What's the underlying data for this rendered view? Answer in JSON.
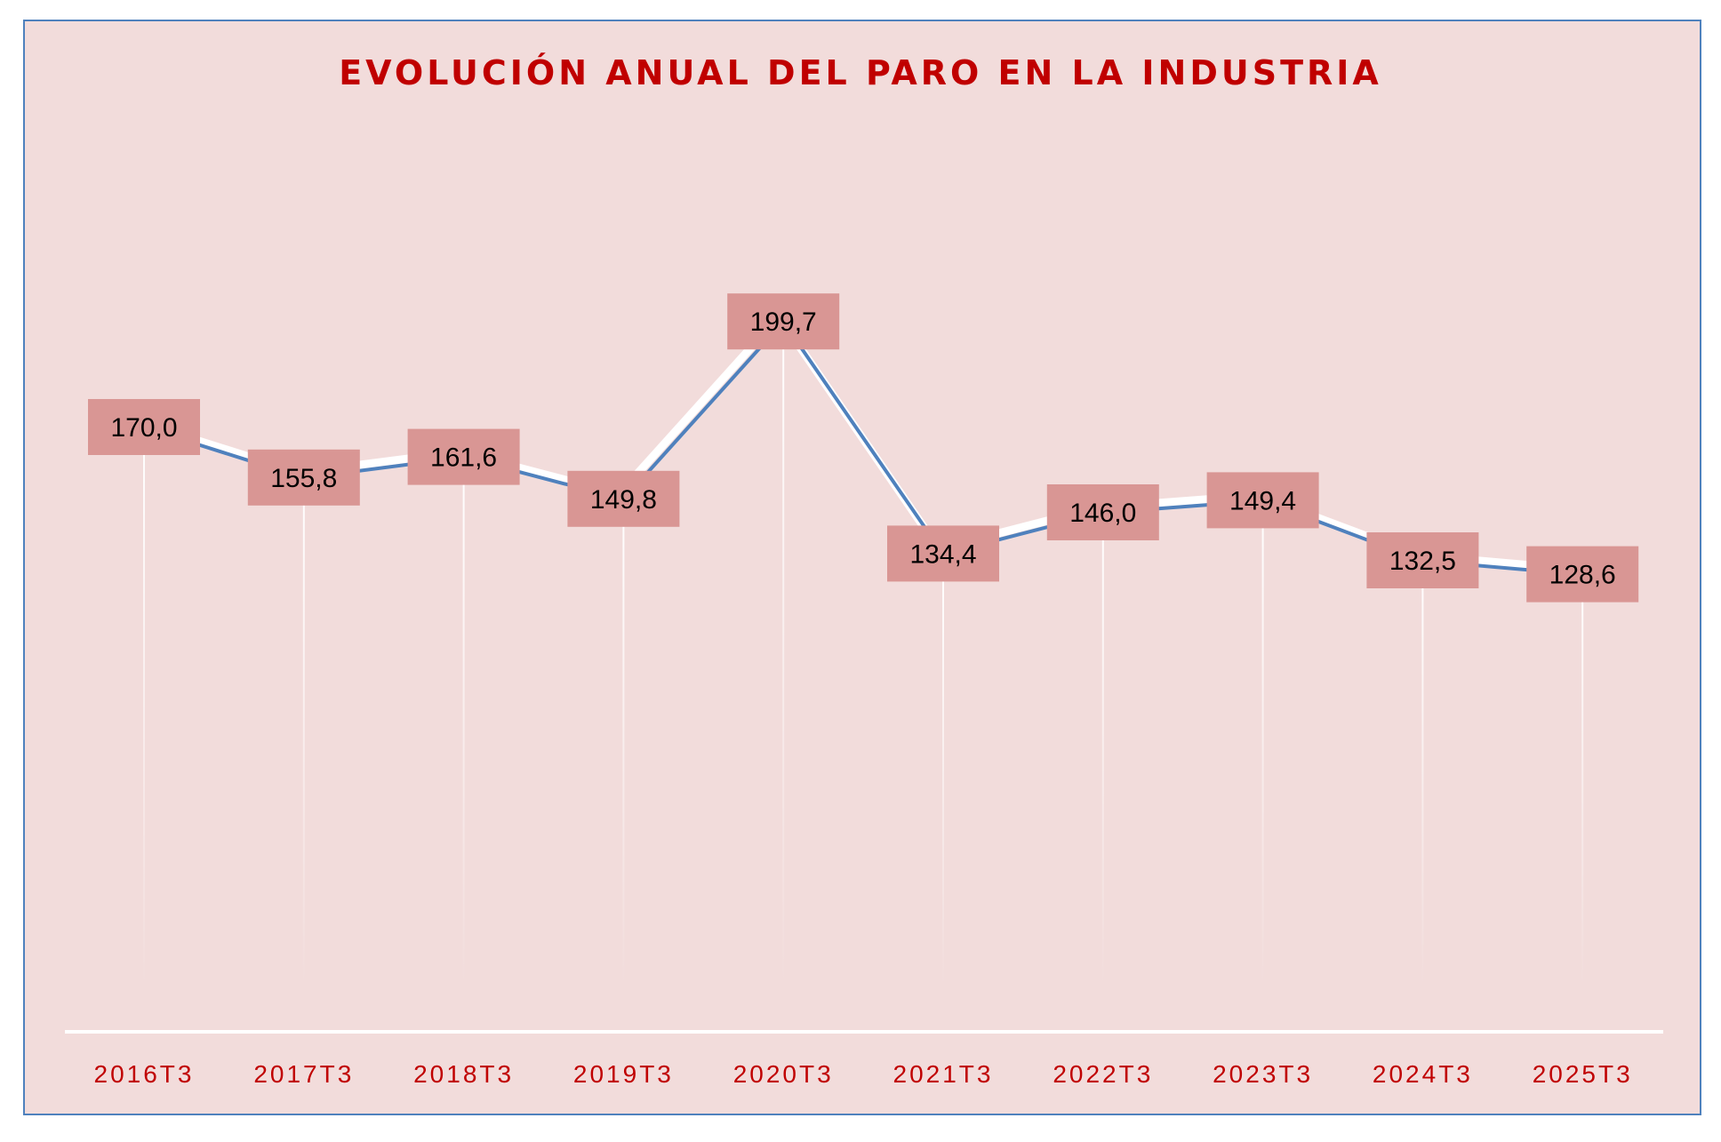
{
  "chart_data": {
    "type": "line",
    "title": "EVOLUCIÓN ANUAL DEL PARO EN LA INDUSTRIA",
    "categories": [
      "2016T3",
      "2017T3",
      "2018T3",
      "2019T3",
      "2020T3",
      "2021T3",
      "2022T3",
      "2023T3",
      "2024T3",
      "2025T3"
    ],
    "values": [
      170.0,
      155.8,
      161.6,
      149.8,
      199.7,
      134.4,
      146.0,
      149.4,
      132.5,
      128.6
    ],
    "value_labels": [
      "170,0",
      "155,8",
      "161,6",
      "149,8",
      "199,7",
      "134,4",
      "146,0",
      "149,4",
      "132,5",
      "128,6"
    ],
    "xlabel": "",
    "ylabel": "",
    "ylim": [
      0,
      200
    ],
    "grid": false,
    "legend": "none",
    "drop_lines": true,
    "colors": {
      "line": "#4f81bd",
      "line_shadow": "#ffffff",
      "label_box": "#d99694",
      "title": "#c00000",
      "tick_labels": "#c00000",
      "background": "#f2dcdb",
      "frame": "#4f81bd"
    }
  }
}
